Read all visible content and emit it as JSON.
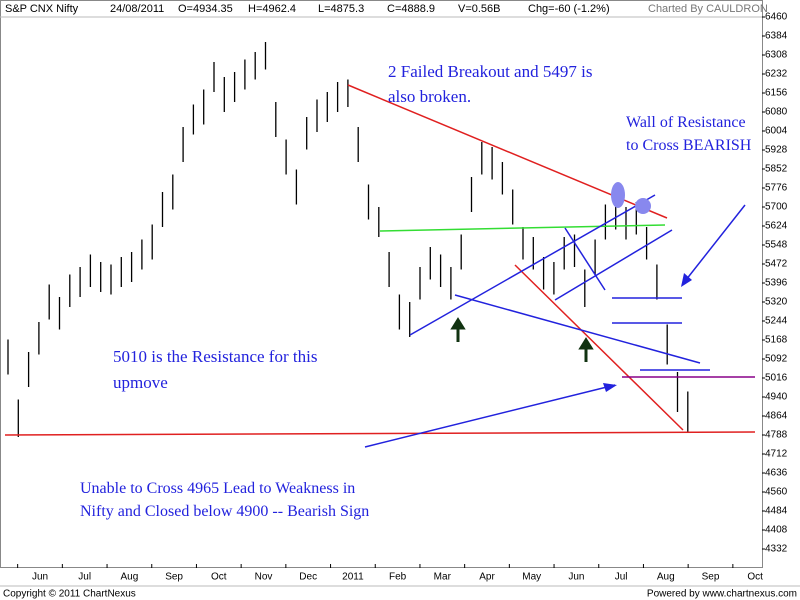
{
  "header": {
    "symbol": "S&P CNX Nifty",
    "date": "24/08/2011",
    "open": "O=4934.35",
    "high": "H=4962.4",
    "low": "L=4875.3",
    "close": "C=4888.9",
    "volume": "V=0.56B",
    "change": "Chg=-60 (-1.2%)",
    "credit": "Charted By CAULDRON"
  },
  "footer": {
    "copyright": "Copyright © 2011 ChartNexus",
    "powered": "Powered by www.chartnexus.com"
  },
  "annotations": {
    "failed_breakout": [
      "2 Failed  Breakout and 5497 is",
      "also broken."
    ],
    "wall": [
      "Wall of Resistance",
      "to Cross BEARISH"
    ],
    "resistance": [
      "5010 is the Resistance for this",
      "upmove"
    ],
    "weakness": [
      "Unable to Cross 4965 Lead to Weakness in",
      "Nifty and Closed below 4900 -- Bearish Sign"
    ]
  },
  "chart_data": {
    "type": "ohlc",
    "color": "#000000",
    "months": [
      "Jun",
      "Jul",
      "Aug",
      "Sep",
      "Oct",
      "Nov",
      "Dec",
      "2011",
      "Feb",
      "Mar",
      "Apr",
      "May",
      "Jun",
      "Jul",
      "Aug",
      "Sep",
      "Oct"
    ],
    "high": [
      5170,
      4930,
      5120,
      5240,
      5390,
      5340,
      5430,
      5460,
      5510,
      5480,
      5470,
      5500,
      5520,
      5570,
      5630,
      5760,
      5830,
      6020,
      6110,
      6170,
      6280,
      6220,
      6240,
      6290,
      6320,
      6360,
      6120,
      5970,
      5850,
      6060,
      6130,
      6160,
      6200,
      6210,
      6020,
      5790,
      5700,
      5520,
      5350,
      5320,
      5460,
      5540,
      5510,
      5460,
      5590,
      5820,
      5960,
      5940,
      5880,
      5770,
      5620,
      5580,
      5500,
      5480,
      5580,
      5590,
      5450,
      5570,
      5710,
      5740,
      5700,
      5720,
      5620,
      5470,
      5230,
      5040,
      4962
    ],
    "low": [
      5030,
      4780,
      4980,
      5110,
      5250,
      5210,
      5300,
      5340,
      5380,
      5360,
      5350,
      5380,
      5400,
      5450,
      5490,
      5620,
      5690,
      5880,
      5990,
      6030,
      6160,
      6080,
      6120,
      6170,
      6210,
      6250,
      5980,
      5830,
      5710,
      5930,
      6000,
      6040,
      6080,
      6100,
      5880,
      5650,
      5580,
      5380,
      5210,
      5180,
      5330,
      5410,
      5380,
      5330,
      5450,
      5680,
      5830,
      5810,
      5750,
      5630,
      5490,
      5450,
      5370,
      5350,
      5450,
      5460,
      5300,
      5430,
      5570,
      5610,
      5570,
      5590,
      5490,
      5330,
      5070,
      4880,
      4800
    ],
    "ylim": [
      4256,
      6496
    ],
    "yticks": [
      4332,
      4408,
      4484,
      4560,
      4636,
      4712,
      4788,
      4864,
      4940,
      5016,
      5092,
      5168,
      5244,
      5320,
      5396,
      5472,
      5548,
      5624,
      5700,
      5776,
      5852,
      5928,
      6004,
      6080,
      6156,
      6232,
      6308,
      6384,
      6460
    ]
  }
}
